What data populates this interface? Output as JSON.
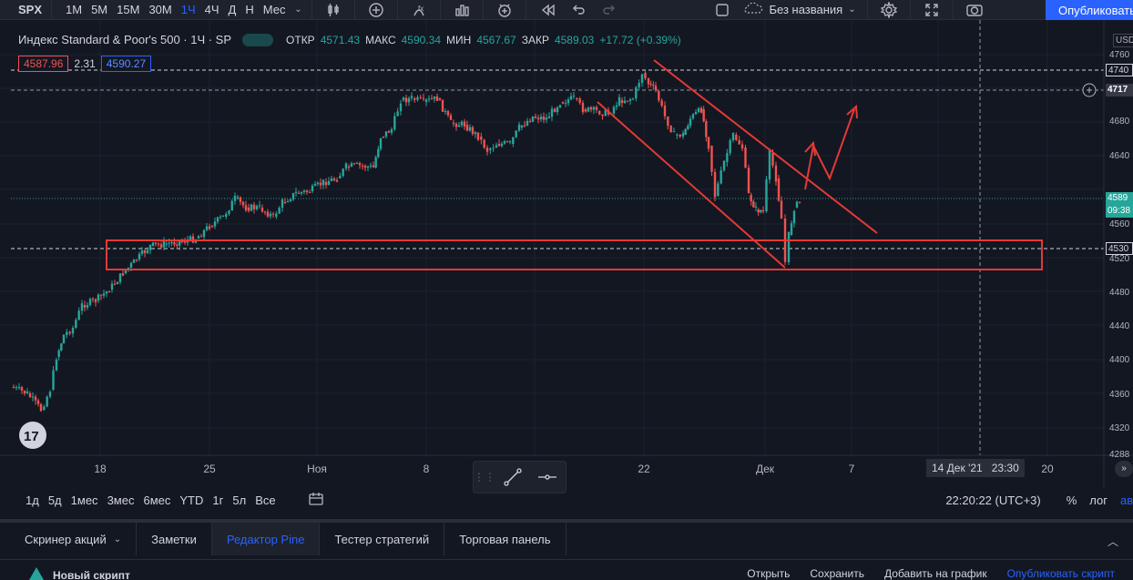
{
  "toolbar": {
    "symbol": "SPX",
    "intervals": [
      "1M",
      "5M",
      "15M",
      "30M",
      "1Ч",
      "4Ч",
      "Д",
      "Н",
      "Мес"
    ],
    "active_interval": "1Ч",
    "layout_name": "Без названия",
    "publish_label": "Опубликовать"
  },
  "legend": {
    "title": "Индекс Standard & Poor's 500 · 1Ч · SP",
    "open_label": "ОТКР",
    "open_value": "4571.43",
    "high_label": "МАКС",
    "high_value": "4590.34",
    "low_label": "МИН",
    "low_value": "4567.67",
    "close_label": "ЗАКР",
    "close_value": "4589.03",
    "change": "+17.72 (+0.39%)",
    "bid": "4587.96",
    "spread": "2.31",
    "ask": "4590.27"
  },
  "price_scale": {
    "currency": "USD",
    "ticks": [
      "4760",
      "4680",
      "4640",
      "4600",
      "4560",
      "4520",
      "4480",
      "4440",
      "4400",
      "4360",
      "4320",
      "4288"
    ],
    "tag_high": "4740",
    "tag_cross": "4717",
    "tag_last": "4589",
    "tag_countdown": "09:38",
    "tag_level": "4530"
  },
  "time_scale": {
    "labels": [
      "18",
      "25",
      "Ноя",
      "8",
      "22",
      "Дек",
      "7",
      "20"
    ],
    "cross_date": "14 Дек '21",
    "cross_time": "23:30"
  },
  "range_bar": {
    "ranges": [
      "1д",
      "5д",
      "1мес",
      "3мес",
      "6мес",
      "YTD",
      "1г",
      "5л",
      "Все"
    ],
    "clock": "22:20:22 (UTC+3)",
    "percent": "%",
    "log": "лог",
    "auto": "авто"
  },
  "bottom_tabs": {
    "screener": "Скринер акций",
    "notes": "Заметки",
    "pine": "Редактор Pine",
    "tester": "Тестер стратегий",
    "trading": "Торговая панель"
  },
  "script_bar": {
    "new_script": "Новый скрипт",
    "open": "Открыть",
    "save": "Сохранить",
    "add_to_chart": "Добавить на график",
    "publish_script": "Опубликовать скрипт"
  },
  "colors": {
    "up": "#26a69a",
    "down": "#ef5350",
    "annotation": "#e53935",
    "accent": "#2962ff",
    "background": "#131722"
  }
}
